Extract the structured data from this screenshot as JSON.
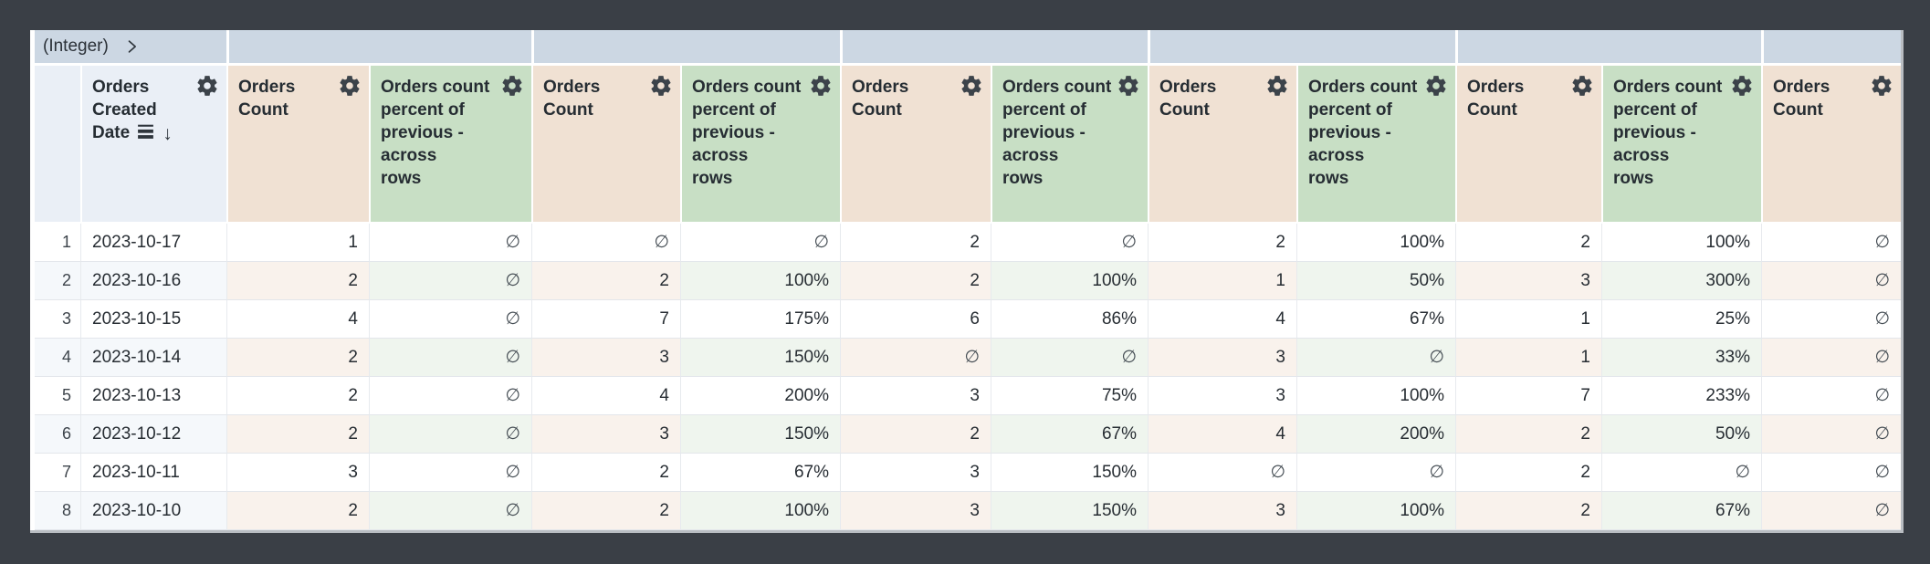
{
  "pivot_header": {
    "label": "(Integer)"
  },
  "header": {
    "dimension_label": "Orders\nCreated\nDate",
    "sort_arrow": "↓",
    "measure_labels": {
      "count": "Orders\nCount",
      "percent": "Orders count\npercent of\nprevious -\nacross\nrows"
    },
    "measure_sequence": [
      "count",
      "percent",
      "count",
      "percent",
      "count",
      "percent",
      "count",
      "percent",
      "count",
      "percent",
      "count"
    ]
  },
  "rows": [
    {
      "num": "1",
      "date": "2023-10-17",
      "values": [
        "1",
        "∅",
        "∅",
        "∅",
        "2",
        "∅",
        "2",
        "100%",
        "2",
        "100%",
        "∅"
      ]
    },
    {
      "num": "2",
      "date": "2023-10-16",
      "values": [
        "2",
        "∅",
        "2",
        "100%",
        "2",
        "100%",
        "1",
        "50%",
        "3",
        "300%",
        "∅"
      ]
    },
    {
      "num": "3",
      "date": "2023-10-15",
      "values": [
        "4",
        "∅",
        "7",
        "175%",
        "6",
        "86%",
        "4",
        "67%",
        "1",
        "25%",
        "∅"
      ]
    },
    {
      "num": "4",
      "date": "2023-10-14",
      "values": [
        "2",
        "∅",
        "3",
        "150%",
        "∅",
        "∅",
        "3",
        "∅",
        "1",
        "33%",
        "∅"
      ]
    },
    {
      "num": "5",
      "date": "2023-10-13",
      "values": [
        "2",
        "∅",
        "4",
        "200%",
        "3",
        "75%",
        "3",
        "100%",
        "7",
        "233%",
        "∅"
      ]
    },
    {
      "num": "6",
      "date": "2023-10-12",
      "values": [
        "2",
        "∅",
        "3",
        "150%",
        "2",
        "67%",
        "4",
        "200%",
        "2",
        "50%",
        "∅"
      ]
    },
    {
      "num": "7",
      "date": "2023-10-11",
      "values": [
        "3",
        "∅",
        "2",
        "67%",
        "3",
        "150%",
        "∅",
        "∅",
        "2",
        "∅",
        "∅"
      ]
    },
    {
      "num": "8",
      "date": "2023-10-10",
      "values": [
        "2",
        "∅",
        "2",
        "100%",
        "3",
        "150%",
        "3",
        "100%",
        "2",
        "67%",
        "∅"
      ]
    }
  ],
  "null_symbol": "∅",
  "colors": {
    "frame": "#3a3f46",
    "pivot_band": "#ccd7e3",
    "dimension_header": "#eaeff6",
    "count_header": "#f0e1d3",
    "percent_header": "#c8dfc5",
    "row_tint_dimension": "#f5f8fb",
    "row_tint_count": "#f9f2ec",
    "row_tint_percent": "#eff5ee"
  },
  "icons": {
    "gear": "gear-icon",
    "pivot_chevron": "chevron-right-icon",
    "date_sort": "sort-lines-icon",
    "sort_direction": "arrow-down-icon"
  }
}
